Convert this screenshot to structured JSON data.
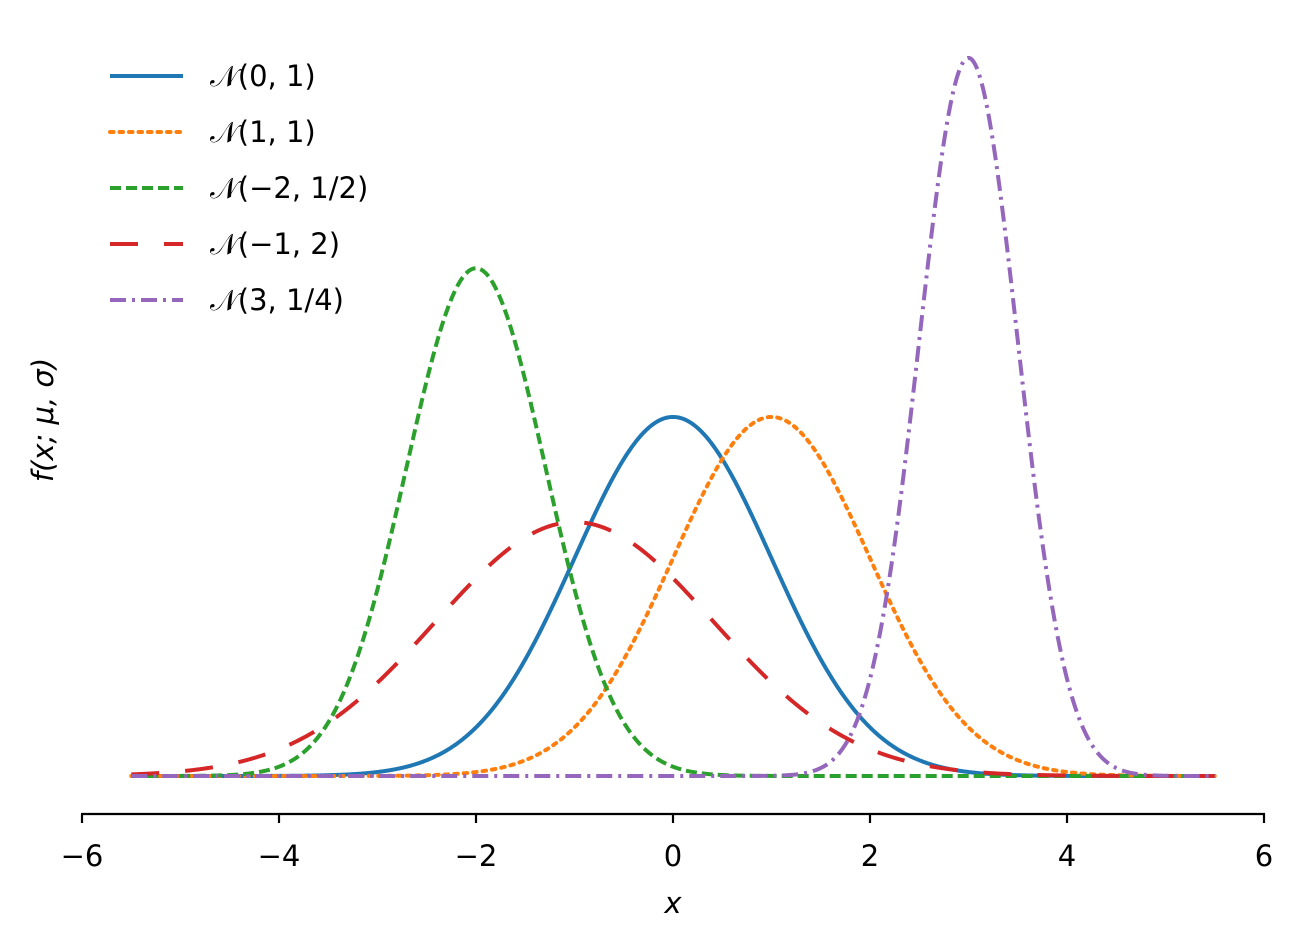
{
  "chart_data": {
    "type": "line",
    "title": "",
    "xlabel": "x",
    "ylabel": "f(x; μ, σ)",
    "xlim": [
      -6,
      6
    ],
    "x_range": [
      -5.5,
      5.5
    ],
    "xticks": [
      -6,
      -4,
      -2,
      0,
      2,
      4,
      6
    ],
    "xtick_labels": [
      "−6",
      "−4",
      "−2",
      "0",
      "2",
      "4",
      "6"
    ],
    "y_axis_visible": false,
    "grid": false,
    "legend_position": "top-left",
    "series": [
      {
        "name": "𝒩(0, 1)",
        "mu": 0,
        "sigma2": 1,
        "line_style": "solid",
        "color": "#1f77b4"
      },
      {
        "name": "𝒩(1, 1)",
        "mu": 1,
        "sigma2": 1,
        "line_style": "dotted",
        "color": "#ff7f0e"
      },
      {
        "name": "𝒩(−2, 1/2)",
        "mu": -2,
        "sigma2": 0.5,
        "line_style": "dashed",
        "color": "#2ca02c"
      },
      {
        "name": "𝒩(−1, 2)",
        "mu": -1,
        "sigma2": 2,
        "line_style": "long-dashed",
        "color": "#d62728"
      },
      {
        "name": "𝒩(3, 1/4)",
        "mu": 3,
        "sigma2": 0.25,
        "line_style": "dash-dot",
        "color": "#9467bd"
      }
    ]
  }
}
